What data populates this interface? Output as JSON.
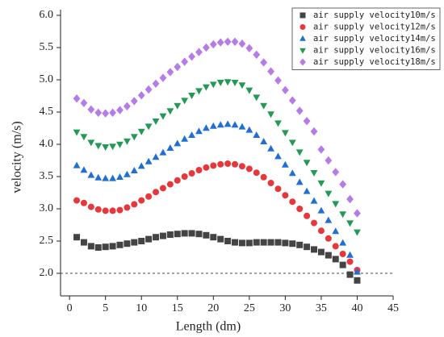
{
  "chart_data": {
    "type": "scatter",
    "x_label": "Length (dm)",
    "y_label": "velocity (m/s)",
    "xlim": [
      -1.25,
      45
    ],
    "xticks": [
      0,
      5,
      10,
      15,
      20,
      25,
      30,
      35,
      40,
      45
    ],
    "ylim": [
      1.65,
      6.0
    ],
    "yticks": [
      {
        "value": 2.0,
        "label": "2.0"
      },
      {
        "value": 2.5,
        "label": "2.5"
      },
      {
        "value": 3.0,
        "label": "3.0"
      },
      {
        "value": 3.5,
        "label": "3.5"
      },
      {
        "value": 4.0,
        "label": "4.0"
      },
      {
        "value": 4.5,
        "label": "4.5"
      },
      {
        "value": 5.0,
        "label": "5.0"
      },
      {
        "value": 5.5,
        "label": "5.5"
      },
      {
        "value": 6.0,
        "label": "6.0"
      }
    ],
    "reference_line": 2.0,
    "legend": "top-right",
    "x": [
      1,
      2,
      3,
      4,
      5,
      6,
      7,
      8,
      9,
      10,
      11,
      12,
      13,
      14,
      15,
      16,
      17,
      18,
      19,
      20,
      21,
      22,
      23,
      24,
      25,
      26,
      27,
      28,
      29,
      30,
      31,
      32,
      33,
      34,
      35,
      36,
      37,
      38,
      39,
      40
    ],
    "series": [
      {
        "name": "air supply velocity10m/s",
        "color": "#444444",
        "marker": "square",
        "values": [
          2.56,
          2.48,
          2.42,
          2.4,
          2.41,
          2.42,
          2.44,
          2.46,
          2.48,
          2.5,
          2.53,
          2.56,
          2.58,
          2.6,
          2.61,
          2.62,
          2.62,
          2.61,
          2.59,
          2.56,
          2.53,
          2.5,
          2.48,
          2.47,
          2.47,
          2.48,
          2.48,
          2.48,
          2.48,
          2.47,
          2.46,
          2.44,
          2.41,
          2.37,
          2.33,
          2.28,
          2.22,
          2.13,
          1.98,
          1.89
        ]
      },
      {
        "name": "air supply velocity12m/s",
        "color": "#e8373a",
        "marker": "circle",
        "values": [
          3.13,
          3.09,
          3.03,
          2.99,
          2.97,
          2.97,
          2.98,
          3.02,
          3.07,
          3.13,
          3.19,
          3.26,
          3.32,
          3.38,
          3.44,
          3.5,
          3.55,
          3.6,
          3.64,
          3.67,
          3.69,
          3.7,
          3.69,
          3.66,
          3.62,
          3.56,
          3.49,
          3.4,
          3.31,
          3.21,
          3.11,
          3.0,
          2.89,
          2.78,
          2.66,
          2.54,
          2.42,
          2.3,
          2.18,
          2.05
        ]
      },
      {
        "name": "air supply velocity14m/s",
        "color": "#1f6fd6",
        "marker": "triangle-up",
        "values": [
          3.67,
          3.6,
          3.52,
          3.48,
          3.47,
          3.47,
          3.49,
          3.53,
          3.59,
          3.66,
          3.73,
          3.8,
          3.87,
          3.94,
          4.01,
          4.08,
          4.14,
          4.2,
          4.25,
          4.28,
          4.3,
          4.31,
          4.3,
          4.27,
          4.22,
          4.14,
          4.04,
          3.93,
          3.81,
          3.68,
          3.55,
          3.41,
          3.27,
          3.12,
          2.97,
          2.82,
          2.65,
          2.47,
          2.28,
          2.02
        ]
      },
      {
        "name": "air supply velocity16m/s",
        "color": "#229a55",
        "marker": "triangle-down",
        "values": [
          4.19,
          4.12,
          4.03,
          3.98,
          3.96,
          3.97,
          4.0,
          4.05,
          4.12,
          4.2,
          4.28,
          4.36,
          4.44,
          4.52,
          4.6,
          4.68,
          4.76,
          4.83,
          4.89,
          4.93,
          4.96,
          4.97,
          4.96,
          4.92,
          4.84,
          4.73,
          4.6,
          4.47,
          4.33,
          4.18,
          4.03,
          3.88,
          3.72,
          3.56,
          3.4,
          3.24,
          3.08,
          2.92,
          2.78,
          2.64
        ]
      },
      {
        "name": "air supply velocity18m/s",
        "color": "#b57ce8",
        "marker": "diamond",
        "values": [
          4.71,
          4.64,
          4.54,
          4.49,
          4.48,
          4.49,
          4.53,
          4.59,
          4.67,
          4.76,
          4.85,
          4.94,
          5.03,
          5.12,
          5.2,
          5.28,
          5.36,
          5.43,
          5.5,
          5.55,
          5.58,
          5.59,
          5.59,
          5.56,
          5.49,
          5.39,
          5.27,
          5.13,
          4.99,
          4.84,
          4.68,
          4.52,
          4.36,
          4.2,
          3.92,
          3.75,
          3.57,
          3.38,
          3.15,
          2.93
        ]
      }
    ]
  }
}
